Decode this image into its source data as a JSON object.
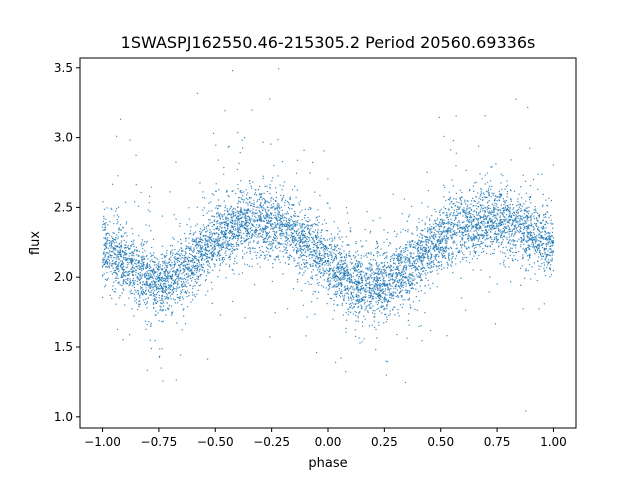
{
  "chart_data": {
    "type": "scatter",
    "title": "1SWASPJ162550.46-215305.2 Period 20560.69336s",
    "xlabel": "phase",
    "ylabel": "flux",
    "xlim": [
      -1.1,
      1.1
    ],
    "ylim": [
      0.92,
      3.57
    ],
    "xticks": [
      -1.0,
      -0.75,
      -0.5,
      -0.25,
      0.0,
      0.25,
      0.5,
      0.75,
      1.0
    ],
    "xtick_labels": [
      "−1.00",
      "−0.75",
      "−0.50",
      "−0.25",
      "0.00",
      "0.25",
      "0.50",
      "0.75",
      "1.00"
    ],
    "yticks": [
      1.0,
      1.5,
      2.0,
      2.5,
      3.0,
      3.5
    ],
    "ytick_labels": [
      "1.0",
      "1.5",
      "2.0",
      "2.5",
      "3.0",
      "3.5"
    ],
    "grid": false,
    "marker_color": "#1f77b4",
    "series": [
      {
        "x": [
          -1.0,
          -0.9,
          -0.8,
          -0.75,
          -0.7,
          -0.6,
          -0.5,
          -0.4,
          -0.3,
          -0.25,
          -0.2,
          -0.1,
          0.0,
          0.1,
          0.2,
          0.25,
          0.3,
          0.4,
          0.5,
          0.6,
          0.7,
          0.75,
          0.8,
          0.9,
          1.0
        ],
        "y": [
          2.22,
          2.12,
          1.98,
          1.95,
          1.98,
          2.12,
          2.27,
          2.37,
          2.41,
          2.4,
          2.36,
          2.25,
          2.1,
          1.98,
          1.93,
          1.94,
          1.99,
          2.13,
          2.28,
          2.37,
          2.41,
          2.41,
          2.38,
          2.32,
          2.24
        ]
      }
    ]
  }
}
